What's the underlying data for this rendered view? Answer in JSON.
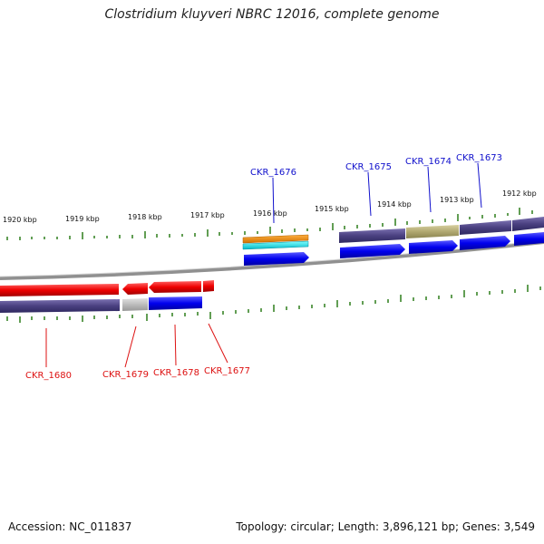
{
  "title": "Clostridium kluyveri NBRC 12016, complete genome",
  "footer": {
    "accession": "Accession: NC_011837",
    "topology": "Topology: circular; Length: 3,896,121 bp; Genes: 3,549"
  },
  "scale_labels": [
    "1920 kbp",
    "1919 kbp",
    "1918 kbp",
    "1917 kbp",
    "1916 kbp",
    "1915 kbp",
    "1914 kbp",
    "1913 kbp",
    "1912 kbp"
  ],
  "upper_gene_labels": [
    "CKR_1676",
    "CKR_1675",
    "CKR_1674",
    "CKR_1673"
  ],
  "lower_gene_labels": [
    "CKR_1680",
    "CKR_1679",
    "CKR_1678",
    "CKR_1677"
  ],
  "colors": {
    "forward_label": "#1010cc",
    "reverse_label": "#dd1111",
    "forward_gene": "#0000ee",
    "reverse_gene": "#ee0000",
    "cds_feature": "#4a4080",
    "tick": "#2e7d1a",
    "backbone": "#888888"
  }
}
